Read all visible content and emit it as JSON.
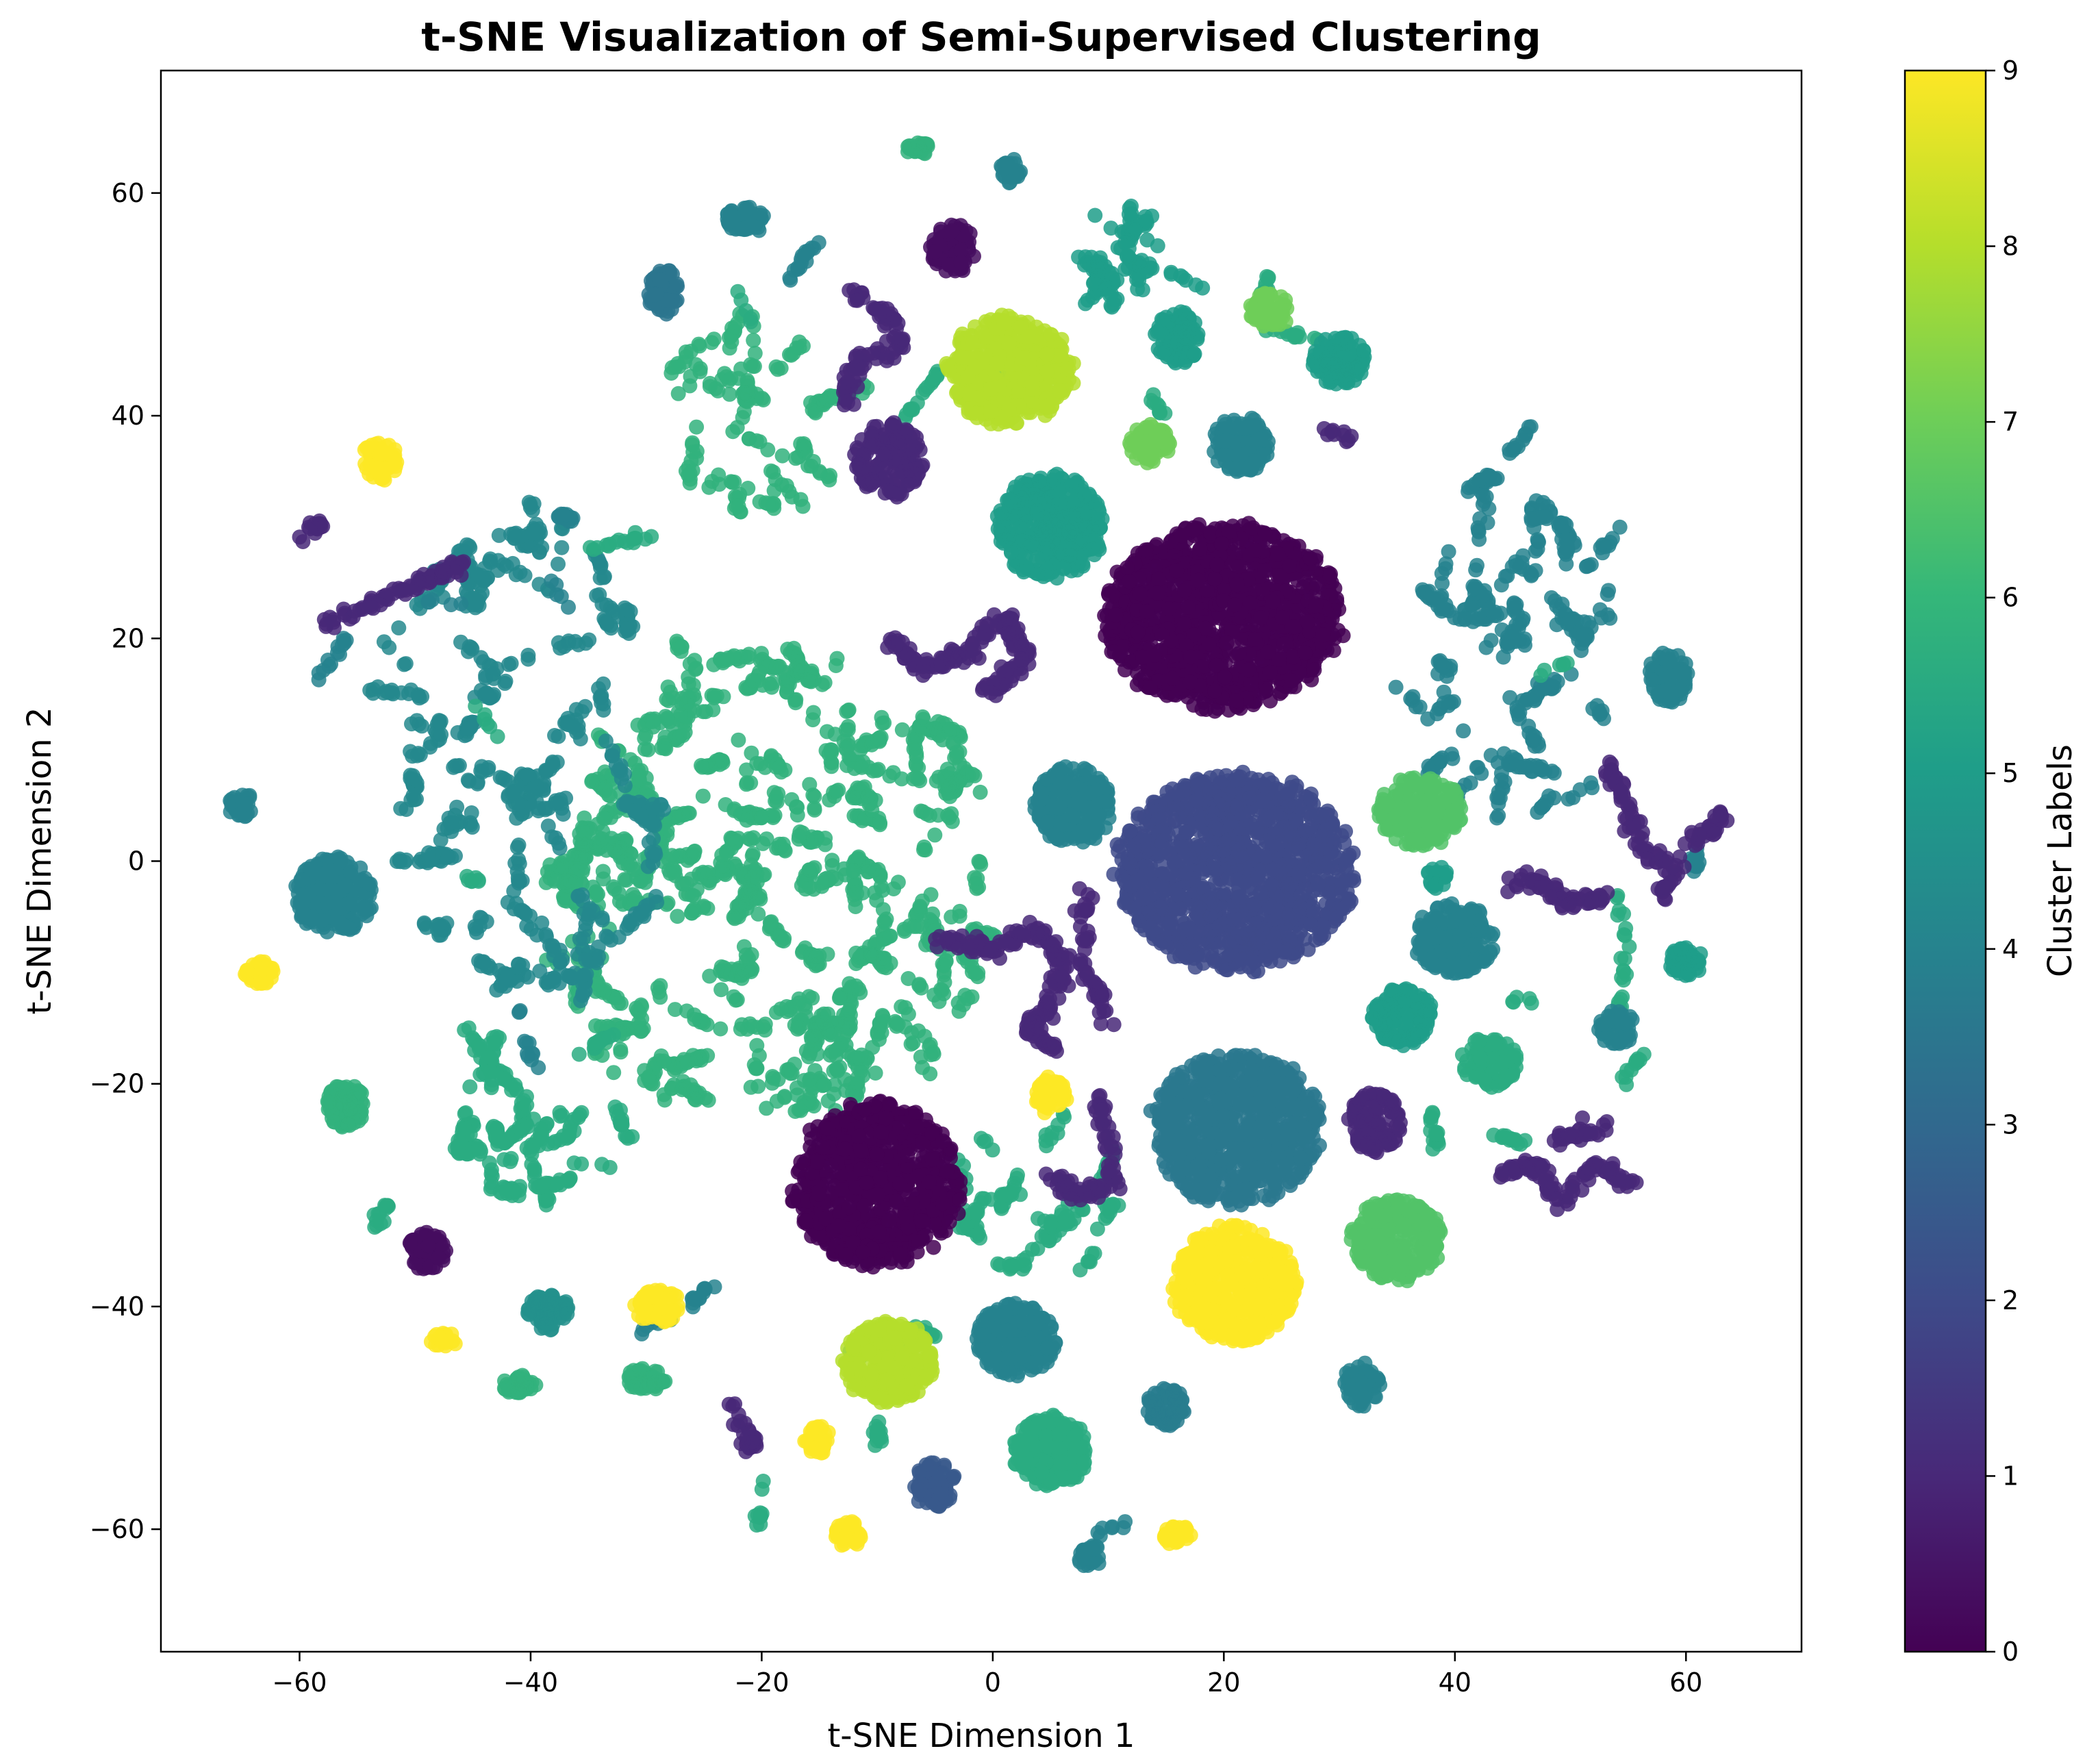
{
  "chart_data": {
    "type": "scatter",
    "title": "t-SNE Visualization of Semi-Supervised Clustering",
    "xlabel": "t-SNE Dimension 1",
    "ylabel": "t-SNE Dimension 2",
    "xlim": [
      -72,
      70
    ],
    "ylim": [
      -71,
      71
    ],
    "xticks": [
      -60,
      -40,
      -20,
      0,
      20,
      40,
      60
    ],
    "yticks": [
      -60,
      -40,
      -20,
      0,
      20,
      40,
      60
    ],
    "colorbar": {
      "label": "Cluster Labels",
      "range": [
        0,
        9
      ],
      "ticks": [
        0,
        1,
        2,
        3,
        4,
        5,
        6,
        7,
        8,
        9
      ],
      "colormap": "viridis"
    },
    "grid": false,
    "clusters": [
      {
        "x": 20,
        "y": 22,
        "rx": 10.5,
        "ry": 8.5,
        "label": 0,
        "n": 1300
      },
      {
        "x": 21,
        "y": -1,
        "rx": 10.5,
        "ry": 9,
        "label": 2,
        "n": 1300
      },
      {
        "x": 21,
        "y": -24,
        "rx": 7.5,
        "ry": 7,
        "label": 3.6,
        "n": 800
      },
      {
        "x": -10,
        "y": -29,
        "rx": 7.5,
        "ry": 7.5,
        "label": 0,
        "n": 850
      },
      {
        "x": 21,
        "y": -38,
        "rx": 5.5,
        "ry": 5.3,
        "label": 9,
        "n": 550
      },
      {
        "x": 1.5,
        "y": 44,
        "rx": 5.5,
        "ry": 5,
        "label": 8,
        "n": 500
      },
      {
        "x": 5,
        "y": 30,
        "rx": 4.8,
        "ry": 4.8,
        "label": 5,
        "n": 400
      },
      {
        "x": 7,
        "y": 5,
        "rx": 3.5,
        "ry": 3.5,
        "label": 4,
        "n": 250
      },
      {
        "x": -57,
        "y": -3,
        "rx": 3.5,
        "ry": 3.5,
        "label": 4,
        "n": 250
      },
      {
        "x": 37,
        "y": 4.5,
        "rx": 3.8,
        "ry": 3.2,
        "label": 6.5,
        "n": 250
      },
      {
        "x": 40,
        "y": -7,
        "rx": 3.5,
        "ry": 3.3,
        "label": 4,
        "n": 250
      },
      {
        "x": 35,
        "y": -34,
        "rx": 4,
        "ry": 3.8,
        "label": 6.5,
        "n": 300
      },
      {
        "x": -9,
        "y": -45,
        "rx": 4,
        "ry": 3.8,
        "label": 8,
        "n": 300
      },
      {
        "x": 2,
        "y": -43,
        "rx": 3.5,
        "ry": 3.3,
        "label": 4,
        "n": 250
      },
      {
        "x": 5,
        "y": -53,
        "rx": 3.3,
        "ry": 3.2,
        "label": 5.5,
        "n": 250
      },
      {
        "x": 30,
        "y": 45,
        "rx": 2.4,
        "ry": 2.2,
        "label": 5,
        "n": 120
      },
      {
        "x": 21.5,
        "y": 37.5,
        "rx": 2.6,
        "ry": 2.6,
        "label": 4,
        "n": 140
      },
      {
        "x": 35.5,
        "y": -14,
        "rx": 2.7,
        "ry": 2.7,
        "label": 5,
        "n": 140
      },
      {
        "x": 43,
        "y": -18,
        "rx": 2.5,
        "ry": 2.3,
        "label": 5.5,
        "n": 120
      },
      {
        "x": 33,
        "y": -23.5,
        "rx": 2.4,
        "ry": 2.8,
        "label": 1,
        "n": 120
      },
      {
        "x": 16,
        "y": 47,
        "rx": 2,
        "ry": 2.5,
        "label": 5,
        "n": 100
      },
      {
        "x": -9,
        "y": 36,
        "rx": 3,
        "ry": 3.5,
        "label": 1,
        "n": 160
      },
      {
        "x": -3.5,
        "y": 55,
        "rx": 2,
        "ry": 2.2,
        "label": 0.3,
        "n": 90
      },
      {
        "x": 13.5,
        "y": 37.5,
        "rx": 1.8,
        "ry": 1.8,
        "label": 7,
        "n": 80
      },
      {
        "x": 24,
        "y": 49.5,
        "rx": 1.8,
        "ry": 1.6,
        "label": 7,
        "n": 70
      },
      {
        "x": -38.5,
        "y": -40.5,
        "rx": 1.9,
        "ry": 1.7,
        "label": 4.5,
        "n": 80
      },
      {
        "x": -29,
        "y": -40,
        "rx": 2,
        "ry": 1.6,
        "label": 9,
        "n": 80
      },
      {
        "x": -49,
        "y": -35,
        "rx": 1.8,
        "ry": 1.7,
        "label": 0.3,
        "n": 70
      },
      {
        "x": -56,
        "y": -22,
        "rx": 1.8,
        "ry": 2,
        "label": 5.8,
        "n": 80
      },
      {
        "x": -53,
        "y": 36,
        "rx": 1.6,
        "ry": 1.8,
        "label": 9,
        "n": 60
      },
      {
        "x": -63.5,
        "y": -10,
        "rx": 1.3,
        "ry": 1.1,
        "label": 9,
        "n": 40
      },
      {
        "x": 5,
        "y": -21,
        "rx": 1.5,
        "ry": 1.8,
        "label": 9,
        "n": 50
      },
      {
        "x": -5,
        "y": -56,
        "rx": 2,
        "ry": 2.1,
        "label": 2.5,
        "n": 80
      },
      {
        "x": 15,
        "y": -49,
        "rx": 1.8,
        "ry": 1.8,
        "label": 3.8,
        "n": 70
      },
      {
        "x": 32,
        "y": -47,
        "rx": 1.6,
        "ry": 2,
        "label": 4,
        "n": 70
      },
      {
        "x": 58.5,
        "y": 16.5,
        "rx": 1.8,
        "ry": 2.3,
        "label": 4,
        "n": 80
      },
      {
        "x": 54,
        "y": -15,
        "rx": 1.6,
        "ry": 1.6,
        "label": 4,
        "n": 60
      },
      {
        "x": 60,
        "y": -9,
        "rx": 1.5,
        "ry": 1.4,
        "label": 5,
        "n": 50
      },
      {
        "x": -21.5,
        "y": 57.5,
        "rx": 1.8,
        "ry": 1.3,
        "label": 4,
        "n": 60
      },
      {
        "x": 1.5,
        "y": 62,
        "rx": 0.9,
        "ry": 1.2,
        "label": 4,
        "n": 30
      },
      {
        "x": -6.5,
        "y": 64,
        "rx": 1,
        "ry": 0.7,
        "label": 5.8,
        "n": 25
      },
      {
        "x": -28.5,
        "y": 51,
        "rx": 1.3,
        "ry": 2.3,
        "label": 3.5,
        "n": 60
      },
      {
        "x": -15,
        "y": -52,
        "rx": 1.3,
        "ry": 1.4,
        "label": 9,
        "n": 40
      },
      {
        "x": -12.5,
        "y": -60.5,
        "rx": 1.1,
        "ry": 1.3,
        "label": 9,
        "n": 35
      },
      {
        "x": 16,
        "y": -60.5,
        "rx": 1.3,
        "ry": 1,
        "label": 9,
        "n": 35
      },
      {
        "x": 8.5,
        "y": -62.5,
        "rx": 1.2,
        "ry": 1.1,
        "label": 4,
        "n": 35
      },
      {
        "x": -30,
        "y": -46.5,
        "rx": 1.8,
        "ry": 1,
        "label": 5.8,
        "n": 50
      },
      {
        "x": -41,
        "y": -47,
        "rx": 1.5,
        "ry": 0.9,
        "label": 5.8,
        "n": 40
      },
      {
        "x": -47.5,
        "y": -43,
        "rx": 1.2,
        "ry": 0.7,
        "label": 9,
        "n": 25
      },
      {
        "x": -65,
        "y": 5,
        "rx": 1.1,
        "ry": 1.2,
        "label": 4,
        "n": 35
      },
      {
        "x": 38.5,
        "y": -1.5,
        "rx": 1,
        "ry": 1,
        "label": 5,
        "n": 20
      }
    ],
    "paths": [
      {
        "pts": [
          [
            -49,
            -33
          ],
          [
            -54,
            25
          ]
        ],
        "label": 1,
        "n": 0
      },
      {
        "pts": [
          [
            -58,
            21
          ],
          [
            -52,
            24
          ],
          [
            -48,
            25.5
          ]
        ],
        "label": 1,
        "n": 60
      },
      {
        "pts": [
          [
            -48,
            25.5
          ],
          [
            -46,
            26.5
          ]
        ],
        "label": 1,
        "n": 20
      },
      {
        "pts": [
          [
            -9,
            20
          ],
          [
            -6,
            17
          ],
          [
            -2,
            19
          ],
          [
            1,
            22
          ],
          [
            3,
            18
          ],
          [
            -1,
            15
          ]
        ],
        "label": 1,
        "n": 180
      },
      {
        "pts": [
          [
            -5,
            -7
          ],
          [
            0,
            -8
          ],
          [
            4,
            -6
          ],
          [
            6,
            -9
          ],
          [
            5,
            -13
          ],
          [
            3,
            -15
          ],
          [
            6,
            -17
          ]
        ],
        "label": 1,
        "n": 160
      },
      {
        "pts": [
          [
            8,
            -3
          ],
          [
            8,
            -10
          ],
          [
            10,
            -14
          ]
        ],
        "label": 1,
        "n": 50
      },
      {
        "pts": [
          [
            9,
            -21
          ],
          [
            10,
            -25
          ],
          [
            10.5,
            -29
          ],
          [
            7,
            -30
          ],
          [
            5,
            -28
          ]
        ],
        "label": 1,
        "n": 80
      },
      {
        "pts": [
          [
            45,
            -2
          ],
          [
            48,
            -2
          ],
          [
            50,
            -4
          ],
          [
            53,
            -3
          ]
        ],
        "label": 1,
        "n": 60
      },
      {
        "pts": [
          [
            53,
            9
          ],
          [
            55,
            5
          ],
          [
            56,
            1
          ],
          [
            59,
            0
          ],
          [
            58,
            -3
          ]
        ],
        "label": 1,
        "n": 80
      },
      {
        "pts": [
          [
            44,
            -28
          ],
          [
            47,
            -27
          ],
          [
            49,
            -31
          ],
          [
            52,
            -27
          ],
          [
            55,
            -29
          ]
        ],
        "label": 1,
        "n": 100
      },
      {
        "pts": [
          [
            49,
            -25
          ],
          [
            53,
            -24
          ]
        ],
        "label": 1,
        "n": 30
      },
      {
        "pts": [
          [
            -12,
            51
          ],
          [
            -9,
            49
          ],
          [
            -8,
            46
          ],
          [
            -10,
            45
          ]
        ],
        "label": 1,
        "n": 50
      },
      {
        "pts": [
          [
            -13,
            41
          ],
          [
            -12,
            44
          ],
          [
            -11,
            46
          ]
        ],
        "label": 1,
        "n": 30
      },
      {
        "pts": [
          [
            -23,
            -48
          ],
          [
            -21,
            -52
          ],
          [
            -21,
            -52.5
          ]
        ],
        "label": 1,
        "n": 30
      },
      {
        "pts": [
          [
            60,
            2
          ],
          [
            62,
            2.5
          ],
          [
            63,
            4.5
          ]
        ],
        "label": 1,
        "n": 30
      },
      {
        "pts": [
          [
            -58,
            30.5
          ],
          [
            -60,
            29
          ]
        ],
        "label": 1,
        "n": 15
      },
      {
        "pts": [
          [
            29,
            38.5
          ],
          [
            31,
            38
          ]
        ],
        "label": 1,
        "n": 10
      }
    ],
    "scatter_regions": [
      {
        "x": -19,
        "y": -2,
        "rx": 19,
        "ry": 22,
        "label": 5.8,
        "n": 1900,
        "clump": true
      },
      {
        "x": -40,
        "y": 10,
        "rx": 13,
        "ry": 22,
        "label": 4.2,
        "n": 800,
        "clump": true
      },
      {
        "x": 45,
        "y": 20,
        "rx": 10,
        "ry": 18,
        "label": 4,
        "n": 450,
        "clump": true
      },
      {
        "x": -20,
        "y": 40,
        "rx": 9,
        "ry": 8,
        "label": 5.8,
        "n": 260,
        "clump": true
      },
      {
        "x": -40,
        "y": -22,
        "rx": 8,
        "ry": 8,
        "label": 5.5,
        "n": 250,
        "clump": true
      },
      {
        "x": 4,
        "y": -30,
        "rx": 7,
        "ry": 7,
        "label": 5.5,
        "n": 200,
        "clump": true
      },
      {
        "x": 12,
        "y": 53,
        "rx": 5,
        "ry": 5,
        "label": 5,
        "n": 140,
        "clump": true
      },
      {
        "x": 0,
        "y": 0,
        "rx": 60,
        "ry": 60,
        "label": 5.5,
        "n": 260,
        "clump": true,
        "ring": true
      },
      {
        "x": 0,
        "y": 0,
        "rx": 60,
        "ry": 60,
        "label": 4,
        "n": 140,
        "clump": true,
        "ring": true
      }
    ]
  }
}
